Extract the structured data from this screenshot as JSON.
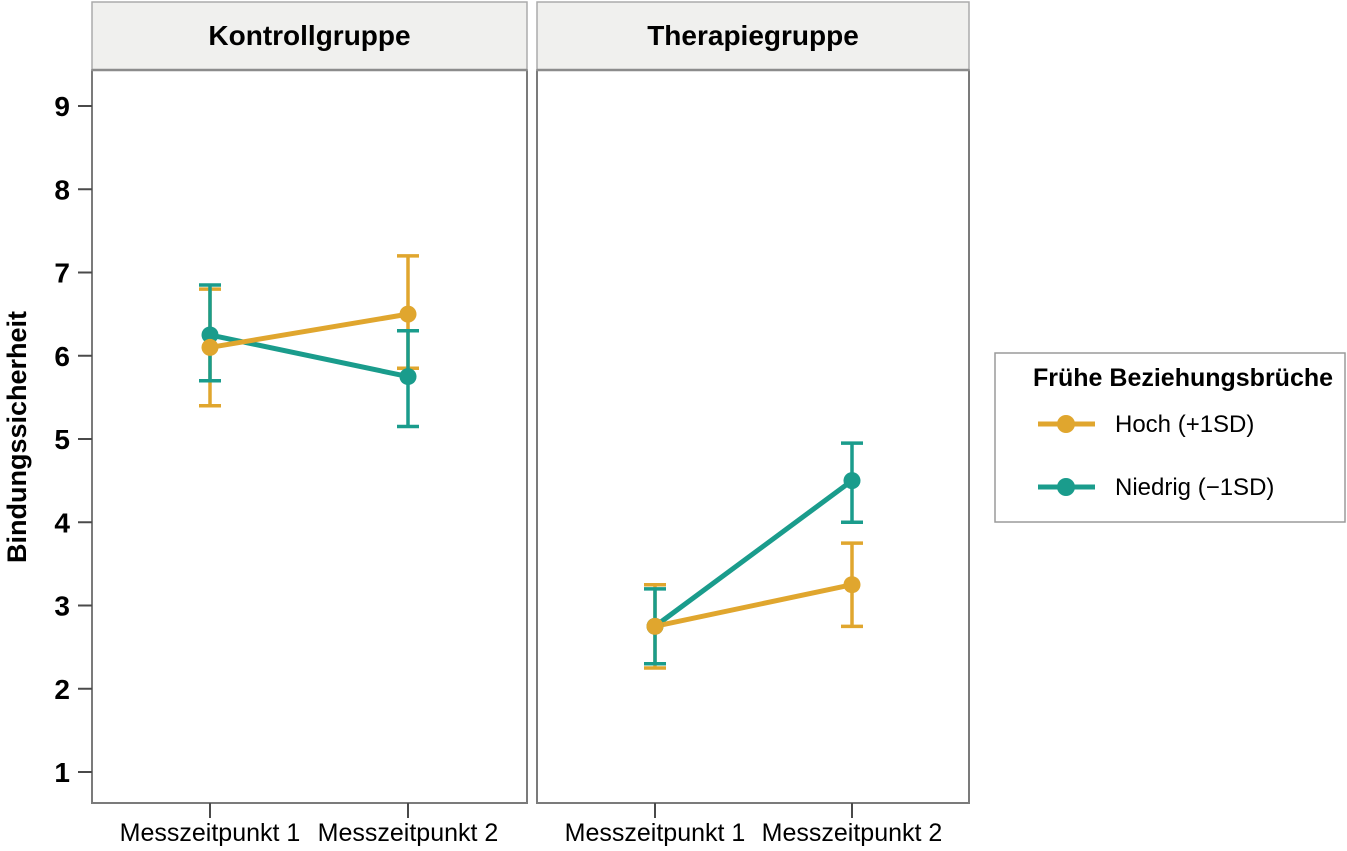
{
  "figure": {
    "y_axis_title": "Bindungssicherheit",
    "panel_titles": [
      "Kontrollgruppe",
      "Therapiegruppe"
    ],
    "x_tick_labels": [
      "Messzeitpunkt 1",
      "Messzeitpunkt 2"
    ]
  },
  "colors": {
    "gold": "#E0A62E",
    "teal": "#1A9C8C",
    "header_fill": "#F0F0EE",
    "header_border": "#ABABAB",
    "panel_border": "#7B7B7B",
    "tick": "#4A4A4A",
    "text": "#000000",
    "legend_border": "#9A9A9A"
  },
  "chart_data": {
    "type": "line",
    "ylabel": "Bindungssicherheit",
    "xlabel": "",
    "yticks": [
      1,
      2,
      3,
      4,
      5,
      6,
      7,
      8,
      9
    ],
    "ylim": [
      0.6,
      9.4
    ],
    "grid": false,
    "categories": [
      "Messzeitpunkt 1",
      "Messzeitpunkt 2"
    ],
    "error_bars": true,
    "facets": [
      {
        "title": "Kontrollgruppe",
        "series": [
          {
            "name": "Hoch (+1SD)",
            "color": "#E0A62E",
            "values": [
              6.1,
              6.5
            ],
            "err_low": [
              5.4,
              5.85
            ],
            "err_high": [
              6.8,
              7.2
            ]
          },
          {
            "name": "Niedrig (−1SD)",
            "color": "#1A9C8C",
            "values": [
              6.25,
              5.75
            ],
            "err_low": [
              5.7,
              5.15
            ],
            "err_high": [
              6.85,
              6.3
            ]
          }
        ]
      },
      {
        "title": "Therapiegruppe",
        "series": [
          {
            "name": "Hoch (+1SD)",
            "color": "#E0A62E",
            "values": [
              2.75,
              3.25
            ],
            "err_low": [
              2.25,
              2.75
            ],
            "err_high": [
              3.25,
              3.75
            ]
          },
          {
            "name": "Niedrig (−1SD)",
            "color": "#1A9C8C",
            "values": [
              2.75,
              4.5
            ],
            "err_low": [
              2.3,
              4.0
            ],
            "err_high": [
              3.2,
              4.95
            ]
          }
        ]
      }
    ],
    "legend": {
      "title": "Frühe Beziehungsbrüche",
      "position": "right",
      "entries": [
        {
          "label": "Hoch (+1SD)",
          "color": "#E0A62E"
        },
        {
          "label": "Niedrig (−1SD)",
          "color": "#1A9C8C"
        }
      ]
    }
  }
}
